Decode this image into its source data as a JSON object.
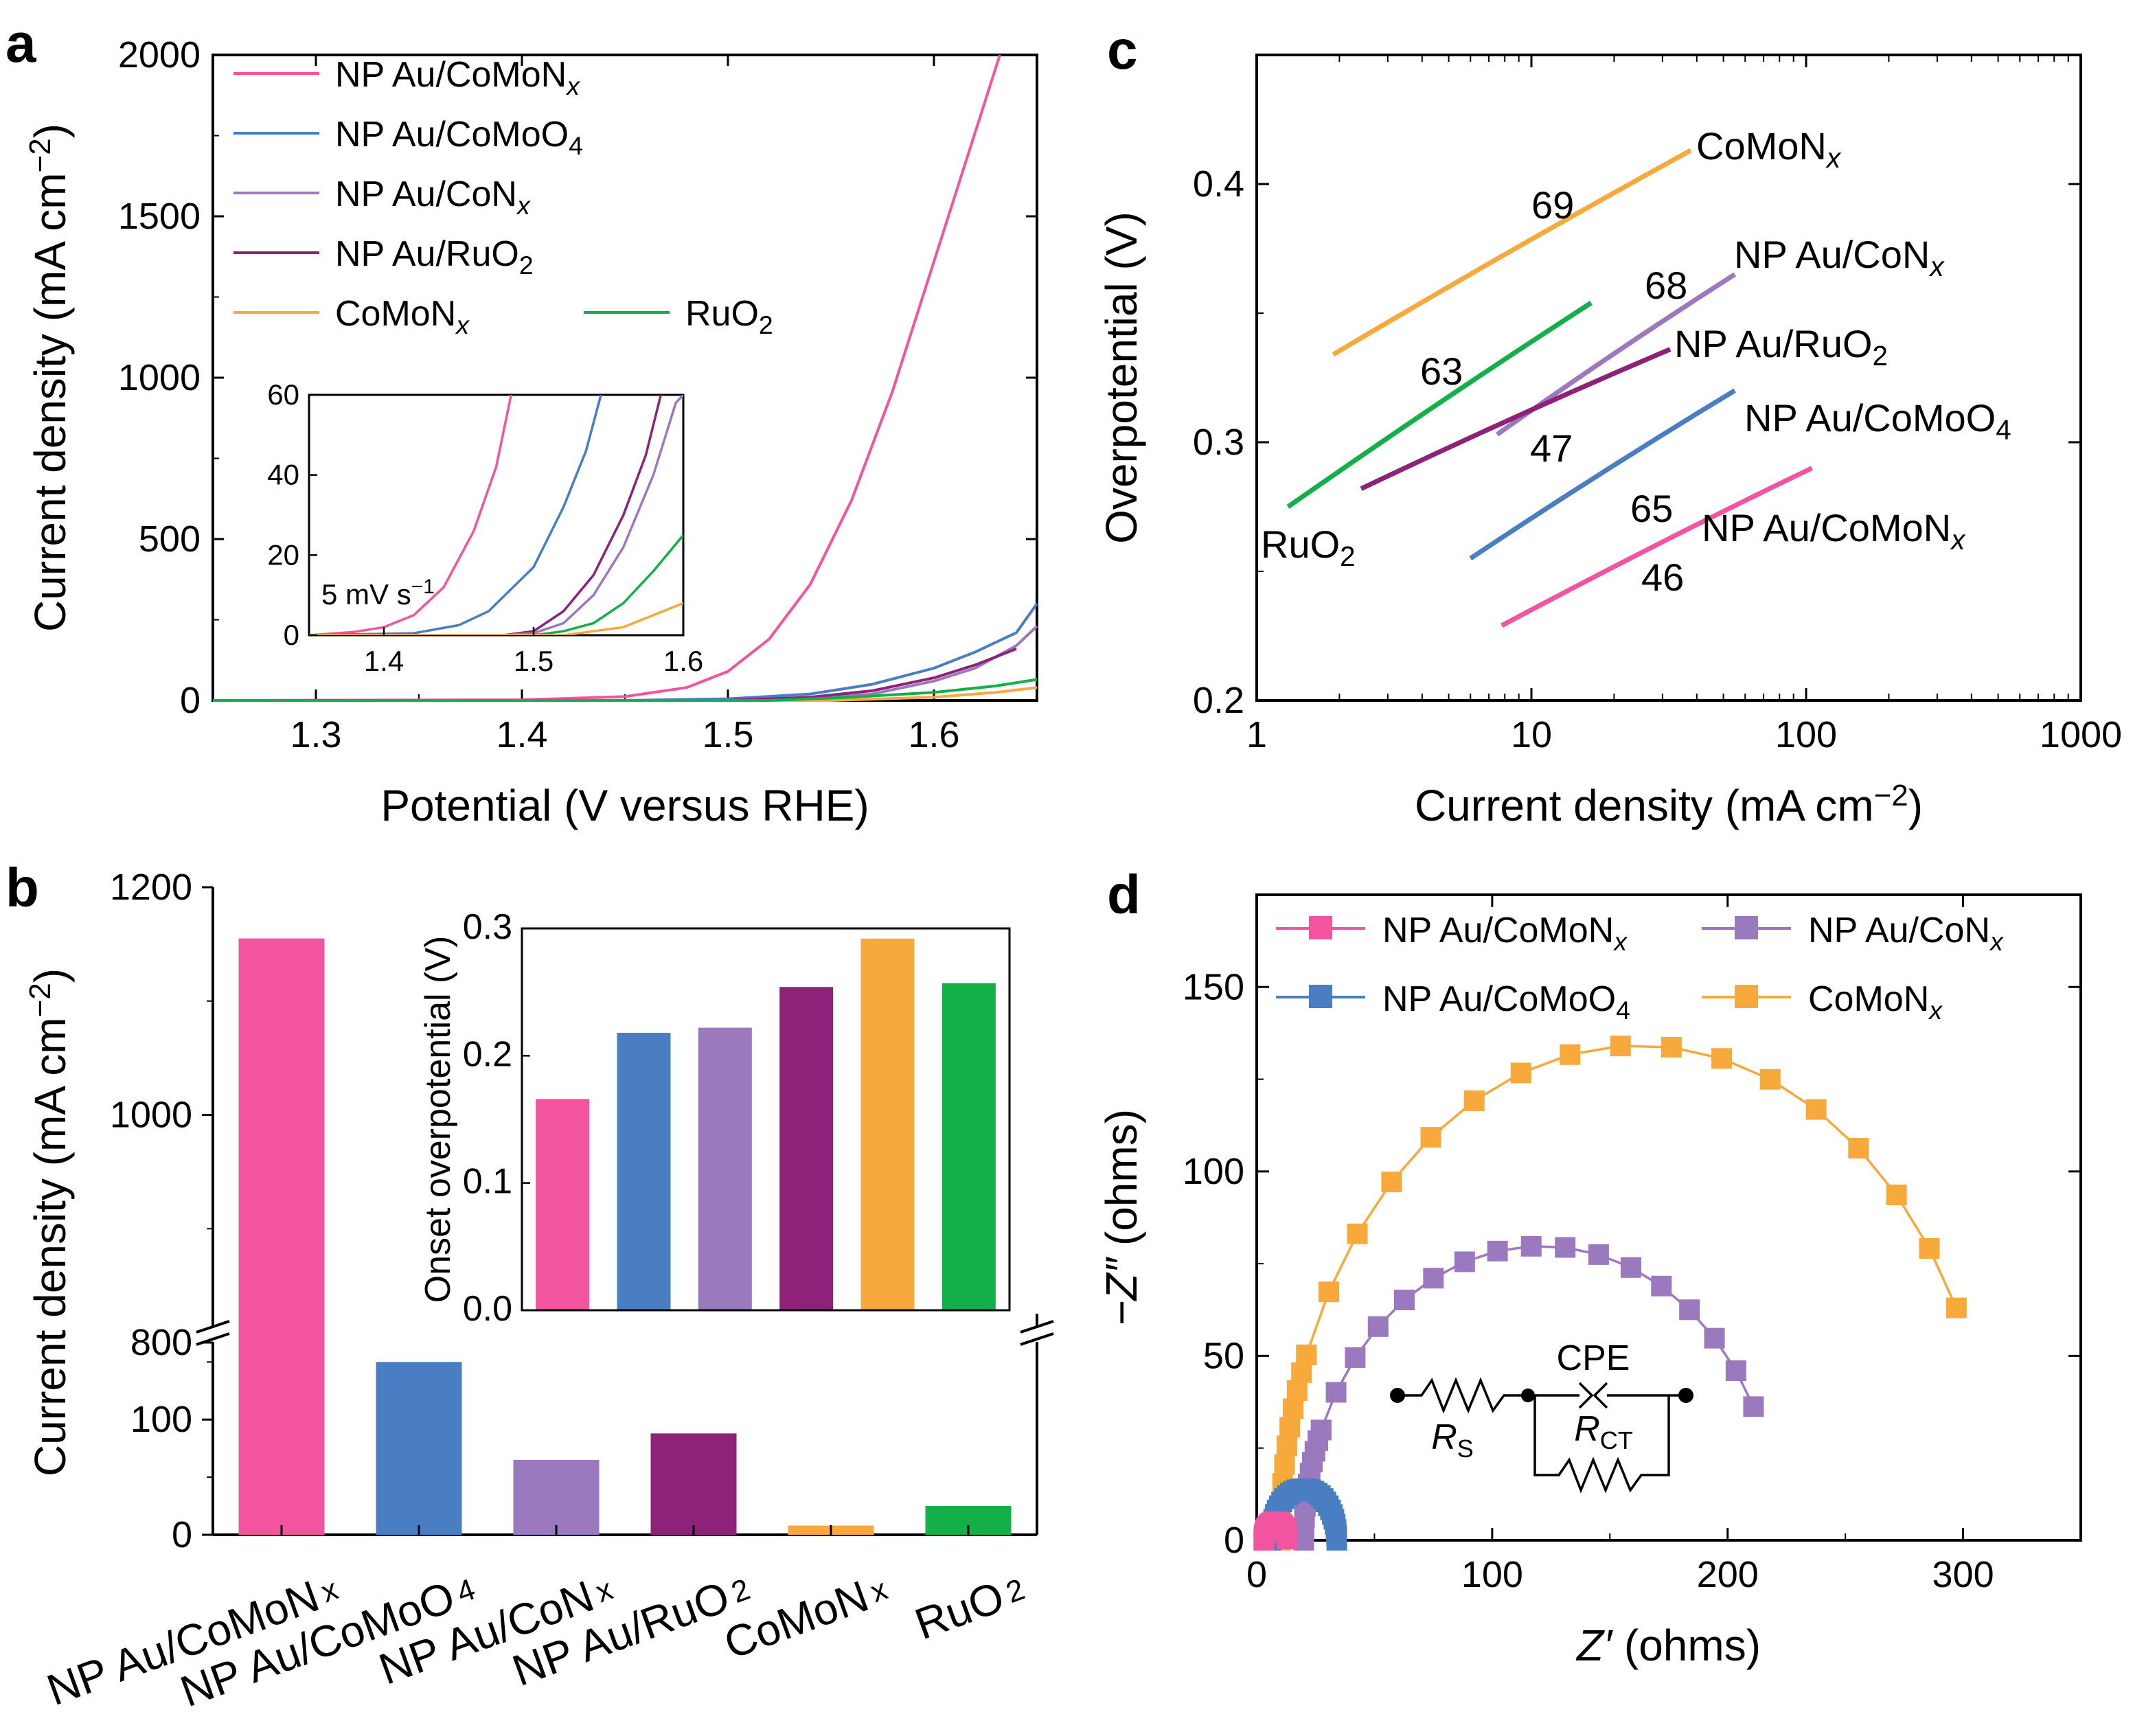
{
  "colors": {
    "pink": "#f2549f",
    "blue": "#4a7ec2",
    "lavender": "#9b79bf",
    "purple": "#8e2279",
    "orange": "#f7a93b",
    "green": "#13b04a"
  },
  "panels": {
    "a": {
      "letter": "a"
    },
    "b": {
      "letter": "b"
    },
    "c": {
      "letter": "c"
    },
    "d": {
      "letter": "d"
    }
  },
  "chart_data": [
    {
      "id": "a",
      "type": "line",
      "xlabel": "Potential (V versus RHE)",
      "ylabel_main": "Current density (mA cm",
      "ylabel_sup": "−2",
      "ylabel_tail": ")",
      "xlim": [
        1.25,
        1.65
      ],
      "ylim": [
        0,
        2000
      ],
      "xticks": [
        "1.3",
        "1.4",
        "1.5",
        "1.6"
      ],
      "yticks": [
        "0",
        "500",
        "1000",
        "1500",
        "2000"
      ],
      "series": [
        {
          "name": "NP Au/CoMoN",
          "sub": "x",
          "subItalic": true,
          "color": "#f2549f",
          "points": [
            [
              1.25,
              0
            ],
            [
              1.4,
              2
            ],
            [
              1.45,
              12
            ],
            [
              1.48,
              40
            ],
            [
              1.5,
              90
            ],
            [
              1.52,
              190
            ],
            [
              1.54,
              360
            ],
            [
              1.56,
              620
            ],
            [
              1.58,
              960
            ],
            [
              1.6,
              1360
            ],
            [
              1.62,
              1760
            ],
            [
              1.632,
              2000
            ]
          ]
        },
        {
          "name": "NP Au/CoMoO",
          "sub": "4",
          "subItalic": false,
          "color": "#4a7ec2",
          "points": [
            [
              1.25,
              0
            ],
            [
              1.45,
              0
            ],
            [
              1.5,
              5
            ],
            [
              1.54,
              20
            ],
            [
              1.57,
              50
            ],
            [
              1.6,
              100
            ],
            [
              1.62,
              150
            ],
            [
              1.64,
              210
            ],
            [
              1.65,
              300
            ]
          ]
        },
        {
          "name": "NP Au/CoN",
          "sub": "x",
          "subItalic": true,
          "color": "#9b79bf",
          "points": [
            [
              1.25,
              0
            ],
            [
              1.5,
              0
            ],
            [
              1.54,
              5
            ],
            [
              1.57,
              20
            ],
            [
              1.6,
              60
            ],
            [
              1.62,
              100
            ],
            [
              1.64,
              170
            ],
            [
              1.65,
              230
            ]
          ]
        },
        {
          "name": "NP Au/RuO",
          "sub": "2",
          "subItalic": false,
          "color": "#8e2279",
          "points": [
            [
              1.25,
              0
            ],
            [
              1.5,
              0
            ],
            [
              1.54,
              10
            ],
            [
              1.57,
              30
            ],
            [
              1.6,
              70
            ],
            [
              1.62,
              110
            ],
            [
              1.64,
              160
            ]
          ]
        },
        {
          "name": "CoMoN",
          "sub": "x",
          "subItalic": true,
          "color": "#f7a93b",
          "points": [
            [
              1.25,
              0
            ],
            [
              1.55,
              0
            ],
            [
              1.6,
              10
            ],
            [
              1.63,
              25
            ],
            [
              1.65,
              40
            ]
          ]
        },
        {
          "name": "RuO",
          "sub": "2",
          "subItalic": false,
          "color": "#13b04a",
          "points": [
            [
              1.25,
              0
            ],
            [
              1.52,
              0
            ],
            [
              1.56,
              10
            ],
            [
              1.6,
              25
            ],
            [
              1.63,
              45
            ],
            [
              1.65,
              65
            ]
          ]
        }
      ],
      "inset": {
        "xlim": [
          1.35,
          1.6
        ],
        "ylim": [
          0,
          60
        ],
        "xticks": [
          "1.4",
          "1.5",
          "1.6"
        ],
        "yticks": [
          "0",
          "20",
          "40",
          "60"
        ],
        "label": "5 mV s",
        "label_sup": "−1",
        "series": [
          {
            "color": "#f2549f",
            "points": [
              [
                1.35,
                0
              ],
              [
                1.38,
                0.8
              ],
              [
                1.4,
                2
              ],
              [
                1.42,
                5
              ],
              [
                1.44,
                12
              ],
              [
                1.46,
                26
              ],
              [
                1.475,
                42
              ],
              [
                1.485,
                60
              ]
            ]
          },
          {
            "color": "#4a7ec2",
            "points": [
              [
                1.35,
                0
              ],
              [
                1.42,
                0.5
              ],
              [
                1.45,
                2.5
              ],
              [
                1.47,
                6
              ],
              [
                1.5,
                17
              ],
              [
                1.52,
                32
              ],
              [
                1.535,
                46
              ],
              [
                1.545,
                60
              ]
            ]
          },
          {
            "color": "#8e2279",
            "points": [
              [
                1.35,
                0
              ],
              [
                1.48,
                0
              ],
              [
                1.5,
                1
              ],
              [
                1.52,
                6
              ],
              [
                1.54,
                15
              ],
              [
                1.56,
                30
              ],
              [
                1.575,
                45
              ],
              [
                1.585,
                60
              ]
            ]
          },
          {
            "color": "#9b79bf",
            "points": [
              [
                1.35,
                0
              ],
              [
                1.48,
                0
              ],
              [
                1.5,
                0.5
              ],
              [
                1.52,
                3
              ],
              [
                1.54,
                10
              ],
              [
                1.56,
                22
              ],
              [
                1.58,
                40
              ],
              [
                1.595,
                58
              ],
              [
                1.6,
                60
              ]
            ]
          },
          {
            "color": "#13b04a",
            "points": [
              [
                1.35,
                0
              ],
              [
                1.5,
                0
              ],
              [
                1.52,
                1
              ],
              [
                1.54,
                3
              ],
              [
                1.56,
                8
              ],
              [
                1.58,
                16
              ],
              [
                1.6,
                25
              ]
            ]
          },
          {
            "color": "#f7a93b",
            "points": [
              [
                1.35,
                0
              ],
              [
                1.52,
                0
              ],
              [
                1.54,
                1
              ],
              [
                1.56,
                2
              ],
              [
                1.58,
                5
              ],
              [
                1.6,
                8
              ]
            ]
          }
        ]
      }
    },
    {
      "id": "b",
      "type": "bar",
      "ylabel_main": "Current density (mA cm",
      "ylabel_sup": "−2",
      "ylabel_tail": ")",
      "break": {
        "lower": [
          0,
          180
        ],
        "upper": [
          800,
          1200
        ]
      },
      "yticks_lower": [
        "0",
        "100"
      ],
      "yticks_upper": [
        "800",
        "1000",
        "1200"
      ],
      "categories": [
        {
          "name": "NP Au/CoMoN",
          "sub": "x",
          "color": "#f2549f"
        },
        {
          "name": "NP Au/CoMoO",
          "sub": "4",
          "color": "#4a7ec2"
        },
        {
          "name": "NP Au/CoN",
          "sub": "x",
          "color": "#9b79bf"
        },
        {
          "name": "NP Au/RuO",
          "sub": "2",
          "color": "#8e2279"
        },
        {
          "name": "CoMoN",
          "sub": "x",
          "color": "#f7a93b"
        },
        {
          "name": "RuO",
          "sub": "2",
          "color": "#13b04a"
        }
      ],
      "values": [
        1155,
        150,
        65,
        88,
        8,
        25
      ],
      "inset": {
        "type": "bar",
        "ylabel": "Onset overpotential (V)",
        "ylim": [
          0,
          0.3
        ],
        "yticks": [
          "0.0",
          "0.1",
          "0.2",
          "0.3"
        ],
        "values": [
          0.166,
          0.218,
          0.222,
          0.254,
          0.292,
          0.257
        ]
      }
    },
    {
      "id": "c",
      "type": "line",
      "xscale": "log",
      "xlabel_main": "Current density (mA cm",
      "xlabel_sup": "−2",
      "xlabel_tail": ")",
      "ylabel": "Overpotential (V)",
      "xlim": [
        1,
        1000
      ],
      "ylim": [
        0.2,
        0.45
      ],
      "xticks": [
        "1",
        "10",
        "100",
        "1000"
      ],
      "yticks": [
        "0.2",
        "0.3",
        "0.4"
      ],
      "series": [
        {
          "name": "CoMoN",
          "sub": "x",
          "subItalic": true,
          "color": "#f7a93b",
          "slope": "69",
          "points": [
            [
              1.9,
              0.334
            ],
            [
              38,
              0.413
            ]
          ]
        },
        {
          "name": "NP Au/CoN",
          "sub": "x",
          "subItalic": true,
          "color": "#9b79bf",
          "slope": "68",
          "points": [
            [
              7.5,
              0.303
            ],
            [
              55,
              0.365
            ]
          ]
        },
        {
          "name": "NP Au/RuO",
          "sub": "2",
          "subItalic": false,
          "color": "#8e2279",
          "slope": "47",
          "points": [
            [
              2.4,
              0.282
            ],
            [
              32,
              0.336
            ]
          ]
        },
        {
          "name": "RuO",
          "sub": "2",
          "subItalic": false,
          "color": "#13b04a",
          "slope": "63",
          "points": [
            [
              1.3,
              0.275
            ],
            [
              16.5,
              0.354
            ]
          ]
        },
        {
          "name": "NP Au/CoMoO",
          "sub": "4",
          "subItalic": false,
          "color": "#4a7ec2",
          "slope": "65",
          "points": [
            [
              6,
              0.255
            ],
            [
              55,
              0.32
            ]
          ]
        },
        {
          "name": "NP Au/CoMoN",
          "sub": "x",
          "subItalic": true,
          "color": "#f2549f",
          "slope": "46",
          "points": [
            [
              7.8,
              0.229
            ],
            [
              105,
              0.29
            ]
          ]
        }
      ]
    },
    {
      "id": "d",
      "type": "scatter",
      "xlabel_main": "Z′",
      "xlabel_tail": " (ohms)",
      "ylabel_main": "−Z″",
      "ylabel_tail": " (ohms)",
      "xlim": [
        0,
        350
      ],
      "ylim": [
        0,
        175
      ],
      "xticks": [
        "0",
        "100",
        "200",
        "300"
      ],
      "yticks": [
        "0",
        "50",
        "100",
        "150"
      ],
      "circuit": {
        "cpe": "CPE",
        "rs": "R",
        "rs_sub": "S",
        "rct": "R",
        "rct_sub": "CT"
      },
      "series": [
        {
          "name": "NP Au/CoMoN",
          "sub": "x",
          "subItalic": true,
          "color": "#f2549f",
          "arc": {
            "start": 3,
            "end": 13,
            "step_deg": 8
          }
        },
        {
          "name": "NP Au/CoN",
          "sub": "x",
          "subItalic": true,
          "color": "#9b79bf",
          "arc": {
            "start": 20,
            "end": 222,
            "scale": 0.79,
            "sweep_deg": 153,
            "dense_until": 34
          }
        },
        {
          "name": "NP Au/CoMoO",
          "sub": "4",
          "subItalic": false,
          "color": "#4a7ec2",
          "arc": {
            "start": 6,
            "end": 34,
            "step_deg": 6
          }
        },
        {
          "name": "CoMoN",
          "sub": "x",
          "subItalic": true,
          "color": "#f7a93b",
          "arc": {
            "start": 10,
            "end": 315,
            "scale": 0.88,
            "sweep_deg": 152,
            "dense_until": 25
          }
        }
      ]
    }
  ]
}
